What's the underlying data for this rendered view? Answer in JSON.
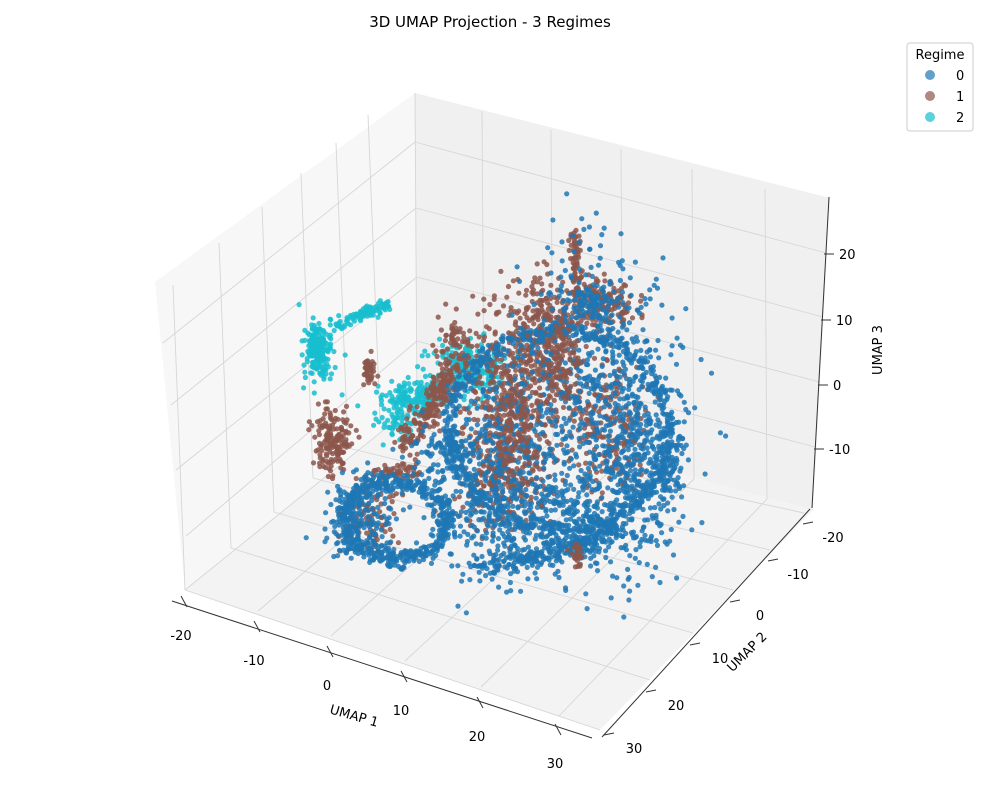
{
  "chart_data": {
    "type": "scatter",
    "title": "3D UMAP Projection - 3 Regimes",
    "axes": {
      "x": {
        "label": "UMAP 1",
        "ticks": [
          "-20",
          "-10",
          "0",
          "10",
          "20",
          "30"
        ]
      },
      "y": {
        "label": "UMAP 2",
        "ticks": [
          "-20",
          "-10",
          "0",
          "10",
          "20",
          "30"
        ]
      },
      "z": {
        "label": "UMAP 3",
        "ticks": [
          "-10",
          "0",
          "10",
          "20"
        ]
      }
    },
    "grid": true,
    "legend": {
      "title": "Regime",
      "placement": "top-right",
      "entries": [
        {
          "name": "0",
          "color": "#1f77b4"
        },
        {
          "name": "1",
          "color": "#8c564b"
        },
        {
          "name": "2",
          "color": "#17becf"
        }
      ]
    },
    "series": [
      {
        "name": "0",
        "color": "#1f77b4"
      },
      {
        "name": "1",
        "color": "#8c564b"
      },
      {
        "name": "2",
        "color": "#17becf"
      }
    ]
  }
}
